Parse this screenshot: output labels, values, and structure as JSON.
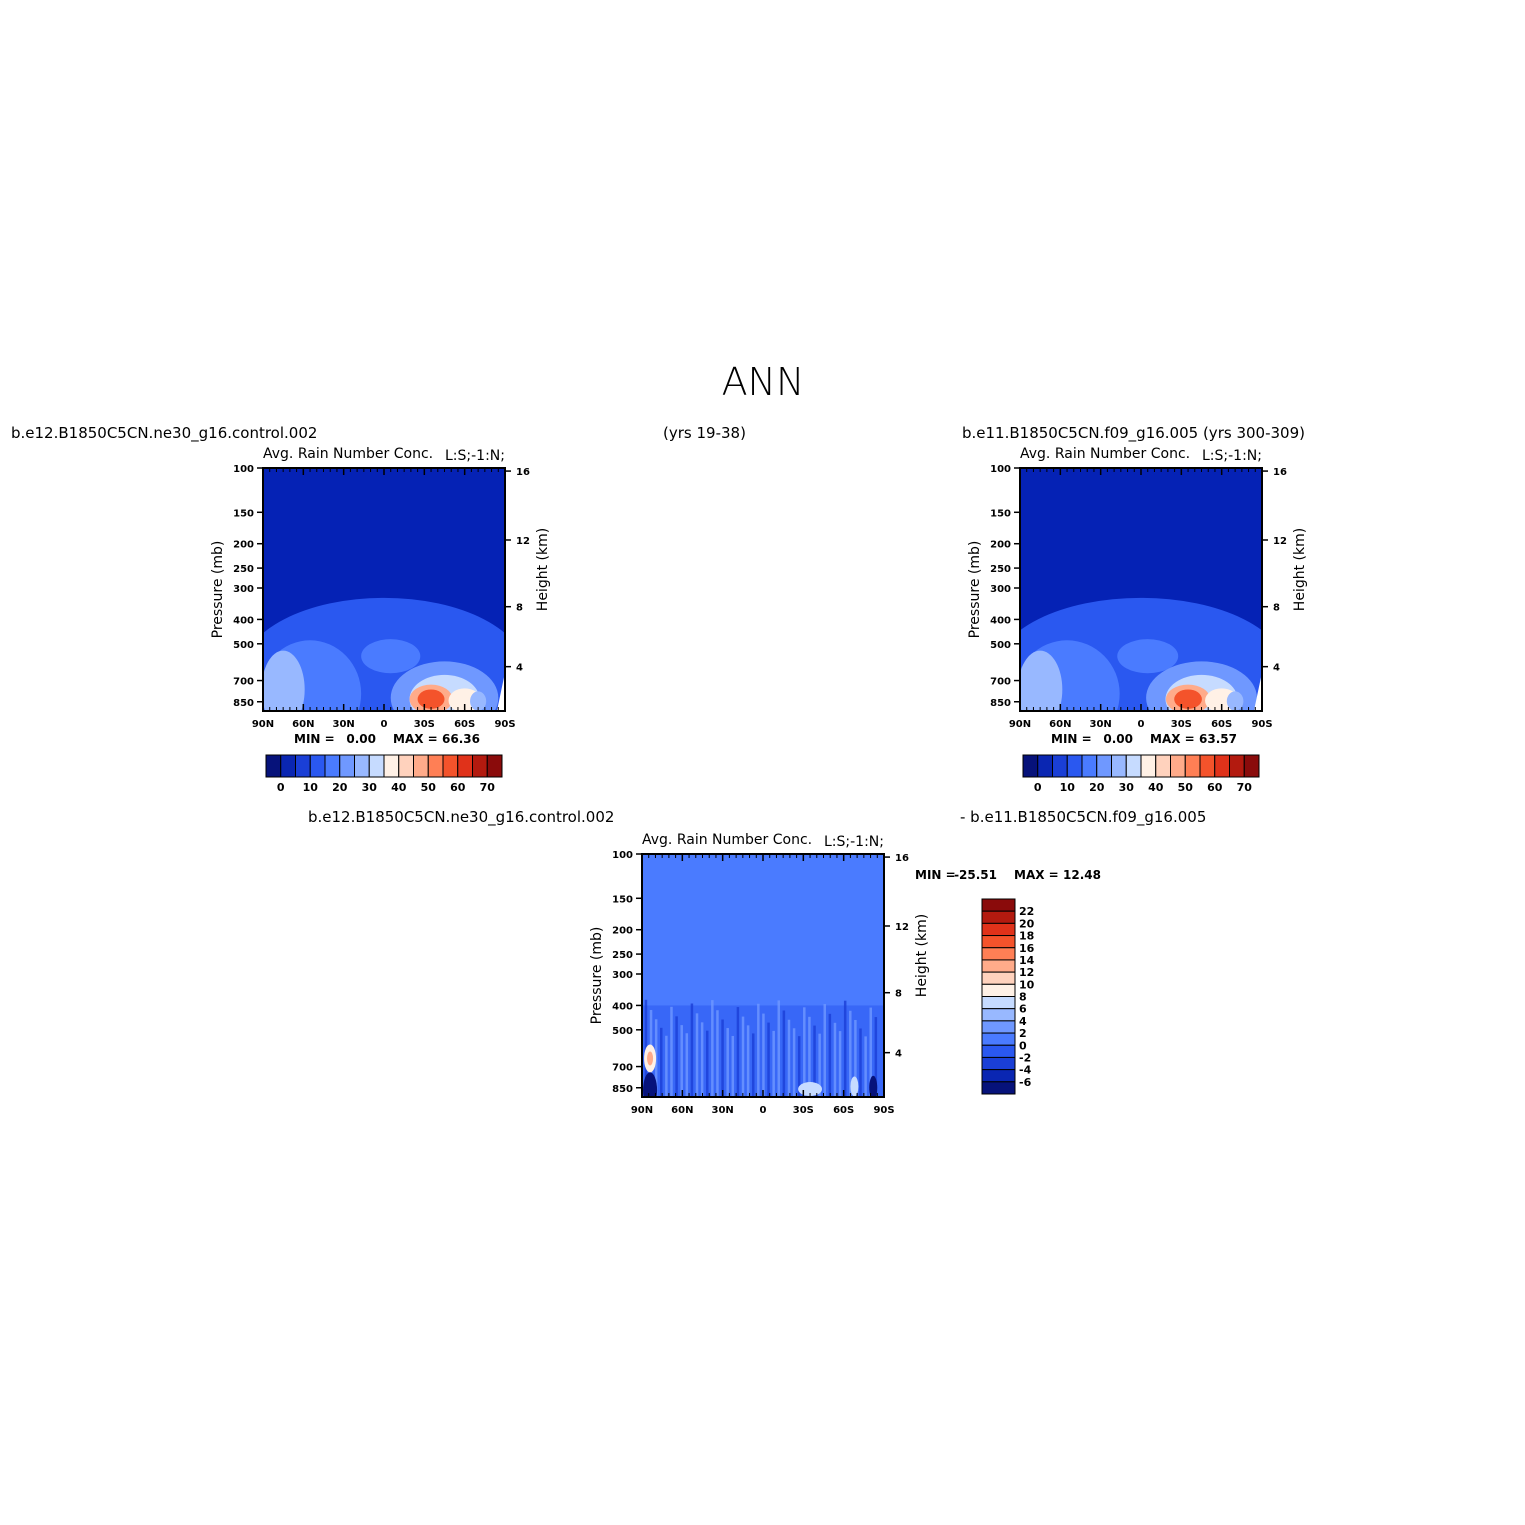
{
  "page_title": "ANN",
  "top_left_case": "b.e12.B1850C5CN.ne30_g16.control.002",
  "top_years": "(yrs 19-38)",
  "top_right_case": "b.e11.B1850C5CN.f09_g16.005 (yrs 300-309)",
  "diff_case_a": "b.e12.B1850C5CN.ne30_g16.control.002",
  "diff_case_b": "- b.e11.B1850C5CN.f09_g16.005",
  "colors": {
    "background_field": "#0522b5",
    "diff_background": "#4a7bff",
    "frame": "#000000"
  },
  "chart_data": [
    {
      "type": "heatmap",
      "title": "Avg. Rain Number Conc.",
      "units_tag": "L:S;-1:N;",
      "xlabel": "",
      "ylabel": "Pressure (mb)",
      "ylabel_right": "Height (km)",
      "x_ticks": [
        "90N",
        "60N",
        "30N",
        "0",
        "30S",
        "60S",
        "90S"
      ],
      "y_ticks": [
        "100",
        "150",
        "200",
        "250",
        "300",
        "400",
        "500",
        "700",
        "850"
      ],
      "y_right_ticks": [
        "16",
        "12",
        "8",
        "4"
      ],
      "min_label": "MIN =",
      "min": "0.00",
      "max_label": "MAX =",
      "max": "66.36",
      "colorbar_levels": [
        0,
        5,
        10,
        15,
        20,
        25,
        30,
        35,
        40,
        45,
        50,
        55,
        60,
        65,
        70
      ],
      "colorbar_labels": [
        "0",
        "10",
        "20",
        "30",
        "40",
        "50",
        "60",
        "70"
      ],
      "colorbar_colors": [
        "#06127a",
        "#0a26b2",
        "#1a3fd6",
        "#2a58f0",
        "#4a7bff",
        "#6f98ff",
        "#98b8ff",
        "#c6dbff",
        "#fff1e6",
        "#ffd2bd",
        "#ffab8a",
        "#ff7f55",
        "#f4532b",
        "#e0321a",
        "#b31a0f",
        "#8a0b0b"
      ],
      "features": [
        {
          "lat": -35,
          "p": 830,
          "value": 66.36
        },
        {
          "lat": -60,
          "p": 840,
          "value": 40
        },
        {
          "lat": 75,
          "p": 760,
          "value": 32
        },
        {
          "lat": 0,
          "p": 560,
          "value": 18
        }
      ]
    },
    {
      "type": "heatmap",
      "title": "Avg. Rain Number Conc.",
      "units_tag": "L:S;-1:N;",
      "xlabel": "",
      "ylabel": "Pressure (mb)",
      "ylabel_right": "Height (km)",
      "x_ticks": [
        "90N",
        "60N",
        "30N",
        "0",
        "30S",
        "60S",
        "90S"
      ],
      "y_ticks": [
        "100",
        "150",
        "200",
        "250",
        "300",
        "400",
        "500",
        "700",
        "850"
      ],
      "y_right_ticks": [
        "16",
        "12",
        "8",
        "4"
      ],
      "min_label": "MIN =",
      "min": "0.00",
      "max_label": "MAX =",
      "max": "63.57",
      "colorbar_levels": [
        0,
        5,
        10,
        15,
        20,
        25,
        30,
        35,
        40,
        45,
        50,
        55,
        60,
        65,
        70
      ],
      "colorbar_labels": [
        "0",
        "10",
        "20",
        "30",
        "40",
        "50",
        "60",
        "70"
      ],
      "colorbar_colors": [
        "#06127a",
        "#0a26b2",
        "#1a3fd6",
        "#2a58f0",
        "#4a7bff",
        "#6f98ff",
        "#98b8ff",
        "#c6dbff",
        "#fff1e6",
        "#ffd2bd",
        "#ffab8a",
        "#ff7f55",
        "#f4532b",
        "#e0321a",
        "#b31a0f",
        "#8a0b0b"
      ],
      "features": [
        {
          "lat": -33,
          "p": 830,
          "value": 63.57
        },
        {
          "lat": -62,
          "p": 830,
          "value": 42
        },
        {
          "lat": 78,
          "p": 760,
          "value": 40
        },
        {
          "lat": 0,
          "p": 560,
          "value": 20
        }
      ]
    },
    {
      "type": "heatmap",
      "title": "Avg. Rain Number Conc.",
      "units_tag": "L:S;-1:N;",
      "xlabel": "",
      "ylabel": "Pressure (mb)",
      "ylabel_right": "Height (km)",
      "x_ticks": [
        "90N",
        "60N",
        "30N",
        "0",
        "30S",
        "60S",
        "90S"
      ],
      "y_ticks": [
        "100",
        "150",
        "200",
        "250",
        "300",
        "400",
        "500",
        "700",
        "850"
      ],
      "y_right_ticks": [
        "16",
        "12",
        "8",
        "4"
      ],
      "min_label": "MIN =",
      "min": "-25.51",
      "max_label": "MAX =",
      "max": "12.48",
      "colorbar_levels": [
        -6,
        -4,
        -2,
        0,
        2,
        4,
        6,
        8,
        10,
        12,
        14,
        16,
        18,
        20,
        22
      ],
      "colorbar_labels": [
        "22",
        "20",
        "18",
        "16",
        "14",
        "12",
        "10",
        "8",
        "6",
        "4",
        "2",
        "0",
        "-2",
        "-4",
        "-6"
      ],
      "colorbar_colors": [
        "#06127a",
        "#0a26b2",
        "#1a3fd6",
        "#2a58f0",
        "#4a7bff",
        "#6f98ff",
        "#98b8ff",
        "#c6dbff",
        "#fff1e6",
        "#ffd2bd",
        "#ffab8a",
        "#ff7f55",
        "#f4532b",
        "#e0321a",
        "#b31a0f",
        "#8a0b0b"
      ],
      "features": [
        {
          "lat": 84,
          "p": 650,
          "value": 12.48
        },
        {
          "lat": 85,
          "p": 860,
          "value": -25.51
        },
        {
          "lat": -35,
          "p": 860,
          "value": 8
        }
      ]
    }
  ]
}
